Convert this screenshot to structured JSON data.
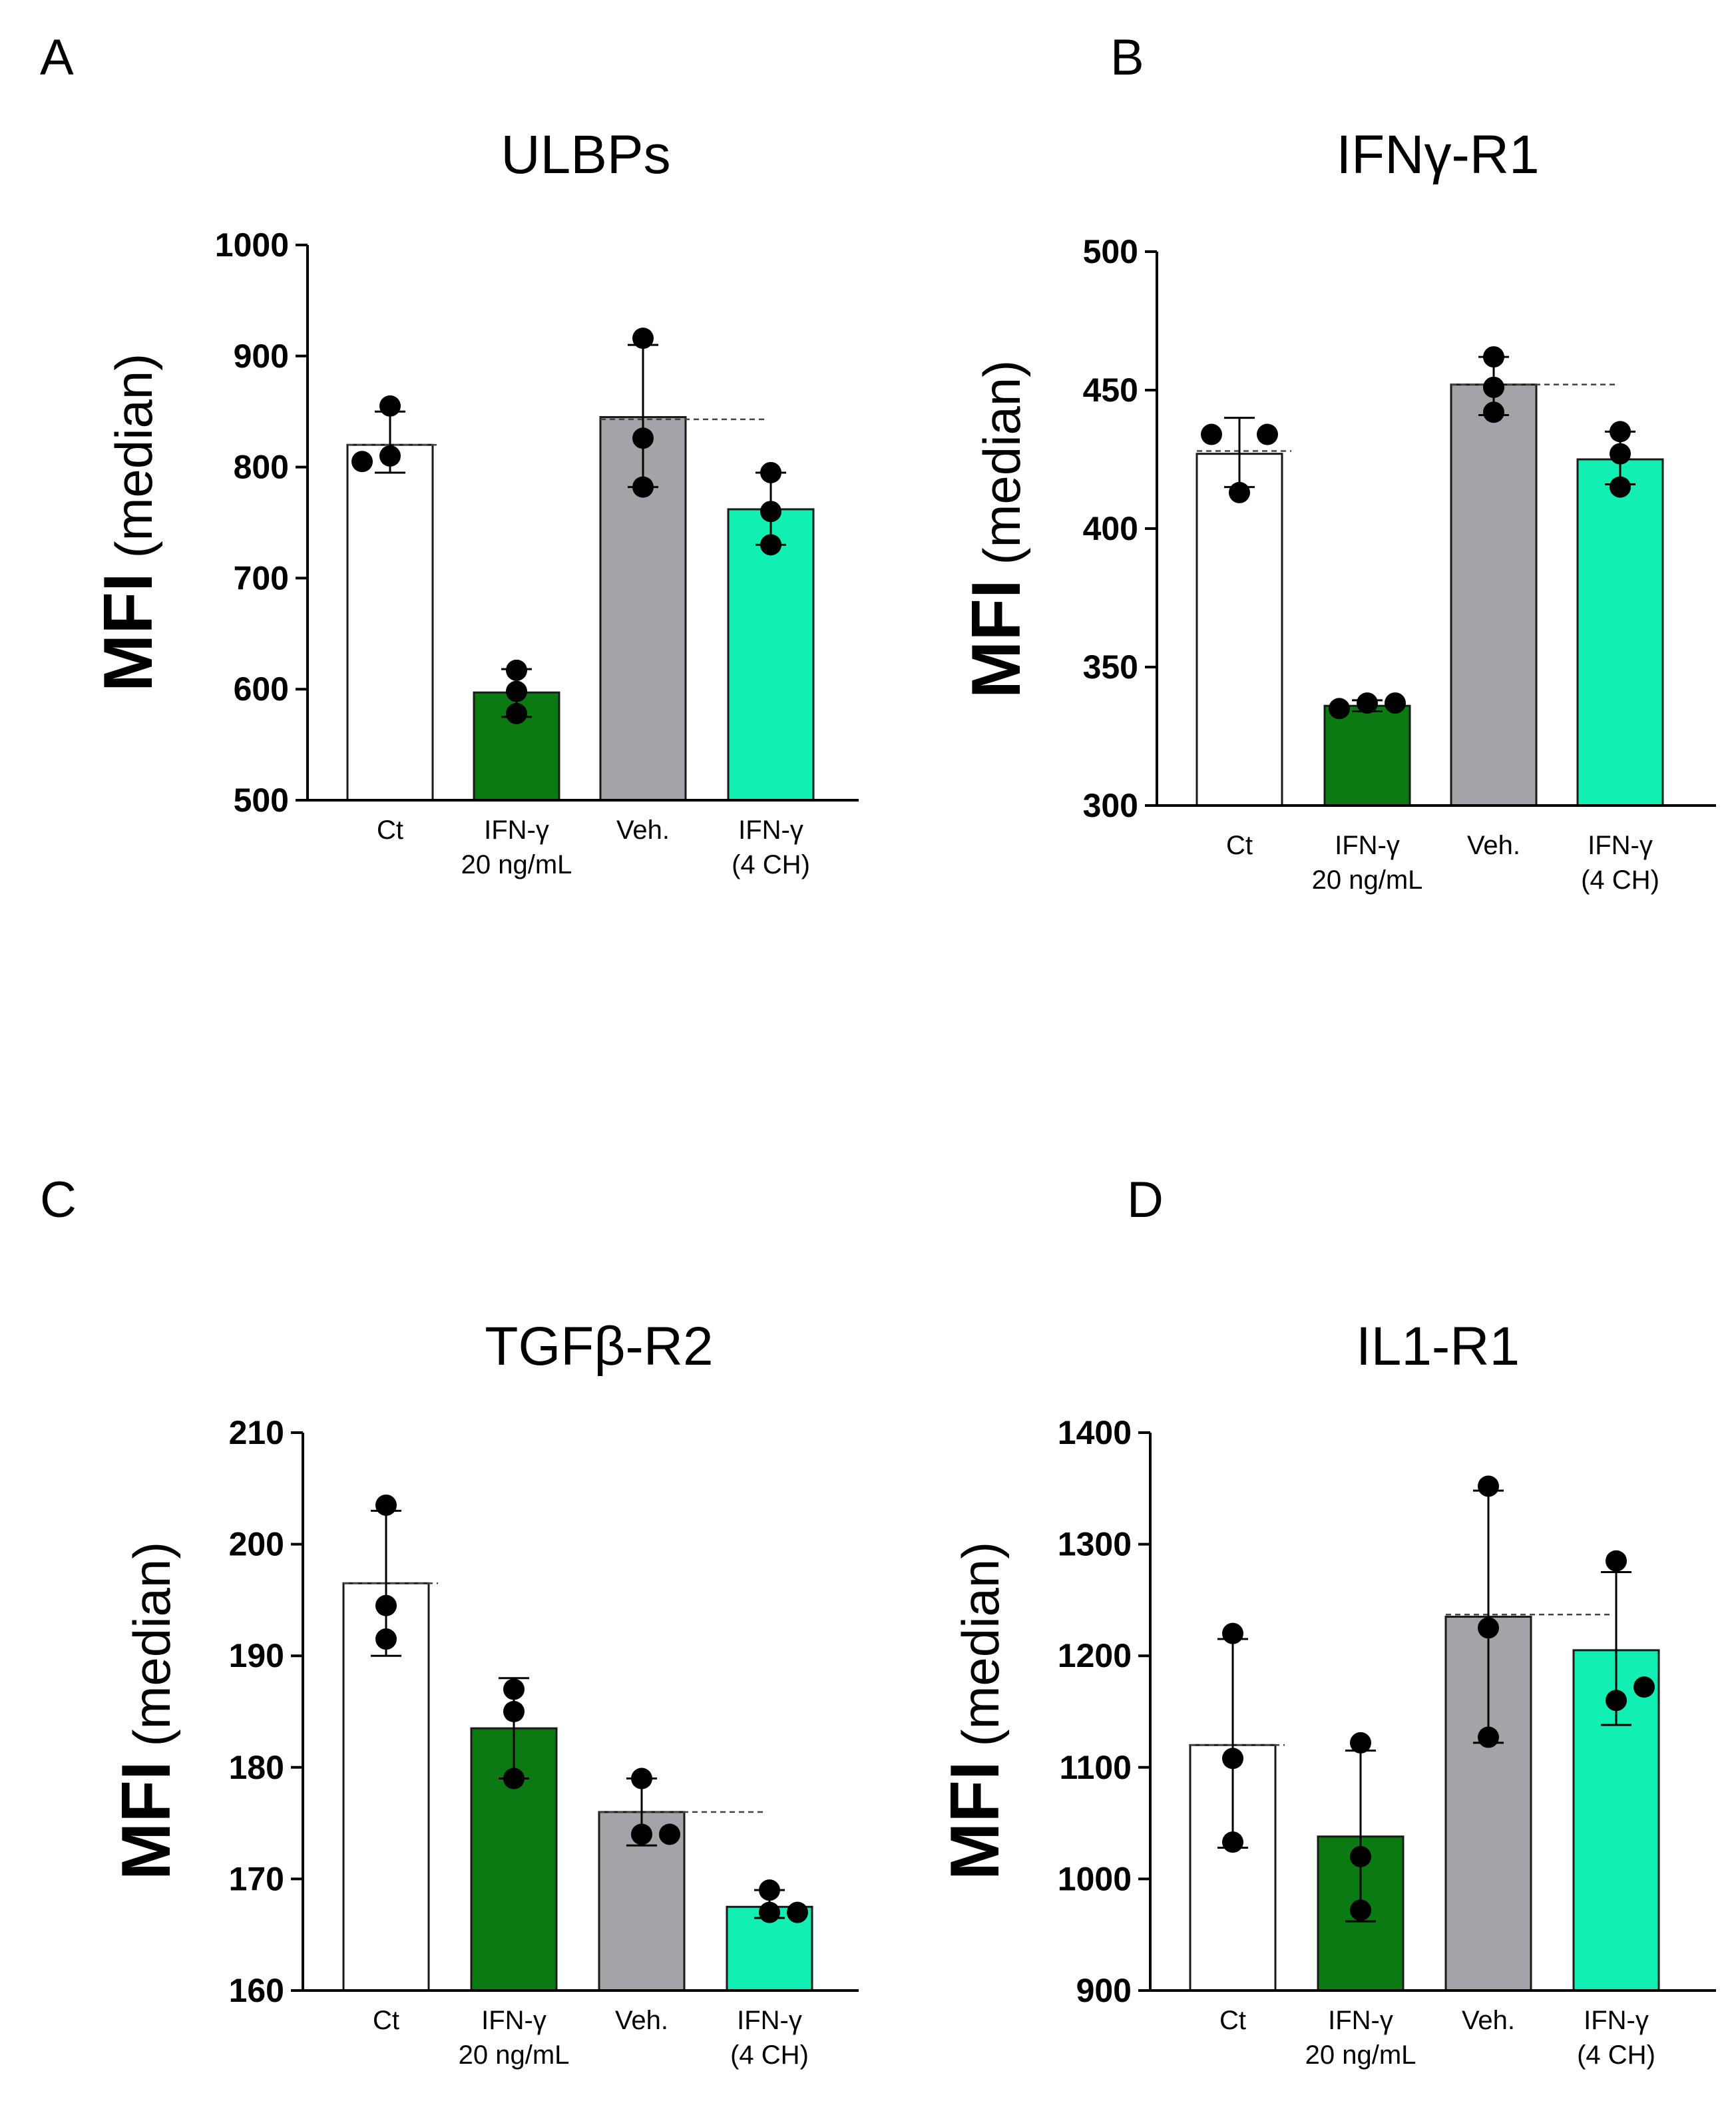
{
  "figure": {
    "panels": [
      "A",
      "B",
      "C",
      "D"
    ]
  },
  "chart_data": [
    {
      "panel": "A",
      "type": "bar",
      "title": "ULBPs",
      "ylabel_bold": "MFI",
      "ylabel_rest": "(median)",
      "ylim": [
        500,
        1000
      ],
      "yticks": [
        500,
        600,
        700,
        800,
        900,
        1000
      ],
      "categories": [
        [
          "Ct"
        ],
        [
          "IFN-γ",
          "20 ng/mL"
        ],
        [
          "Veh."
        ],
        [
          "IFN-γ",
          "(4 CH)"
        ]
      ],
      "values": [
        820,
        597,
        845,
        762
      ],
      "errors": [
        [
          795,
          850
        ],
        [
          575,
          618
        ],
        [
          782,
          910
        ],
        [
          730,
          795
        ]
      ],
      "points": [
        [
          805,
          810,
          855
        ],
        [
          578,
          598,
          617
        ],
        [
          782,
          826,
          916
        ],
        [
          730,
          760,
          795
        ]
      ],
      "reference_line": 820,
      "reference_line_2": 843,
      "colors": [
        "#ffffff",
        "#0b7a12",
        "#a4a3a8",
        "#12efb2"
      ]
    },
    {
      "panel": "B",
      "type": "bar",
      "title": "IFNγ-R1",
      "ylabel_bold": "MFI",
      "ylabel_rest": "(median)",
      "ylim": [
        300,
        500
      ],
      "yticks": [
        300,
        350,
        400,
        450,
        500
      ],
      "categories": [
        [
          "Ct"
        ],
        [
          "IFN-γ",
          "20 ng/mL"
        ],
        [
          "Veh."
        ],
        [
          "IFN-γ",
          "(4 CH)"
        ]
      ],
      "values": [
        427,
        336,
        452,
        425
      ],
      "errors": [
        [
          415,
          440
        ],
        [
          334,
          338
        ],
        [
          441,
          462
        ],
        [
          416,
          435
        ]
      ],
      "points": [
        [
          434,
          413,
          434
        ],
        [
          335,
          337,
          337
        ],
        [
          462,
          451,
          442
        ],
        [
          435,
          415,
          427
        ]
      ],
      "reference_line": 428,
      "reference_line_2": 452,
      "colors": [
        "#ffffff",
        "#0b7a12",
        "#a4a3a8",
        "#12efb2"
      ]
    },
    {
      "panel": "C",
      "type": "bar",
      "title": "TGFβ-R2",
      "ylabel_bold": "MFI",
      "ylabel_rest": "(median)",
      "ylim": [
        160,
        210
      ],
      "yticks": [
        160,
        170,
        180,
        190,
        200,
        210
      ],
      "categories": [
        [
          "Ct"
        ],
        [
          "IFN-γ",
          "20 ng/mL"
        ],
        [
          "Veh."
        ],
        [
          "IFN-γ",
          "(4 CH)"
        ]
      ],
      "values": [
        196.5,
        183.5,
        176,
        167.5
      ],
      "errors": [
        [
          190,
          203
        ],
        [
          179,
          188
        ],
        [
          173,
          179
        ],
        [
          166.5,
          169
        ]
      ],
      "points": [
        [
          203.5,
          194.5,
          191.5
        ],
        [
          187,
          185,
          179
        ],
        [
          179,
          174,
          174
        ],
        [
          169,
          167,
          167
        ]
      ],
      "reference_line": 196.5,
      "reference_line_2": 176,
      "colors": [
        "#ffffff",
        "#0b7a12",
        "#a4a3a8",
        "#12efb2"
      ]
    },
    {
      "panel": "D",
      "type": "bar",
      "title": "IL1-R1",
      "ylabel_bold": "MFI",
      "ylabel_rest": "(median)",
      "ylim": [
        900,
        1400
      ],
      "yticks": [
        900,
        1000,
        1100,
        1200,
        1300,
        1400
      ],
      "categories": [
        [
          "Ct"
        ],
        [
          "IFN-γ",
          "20 ng/mL"
        ],
        [
          "Veh."
        ],
        [
          "IFN-γ",
          "(4 CH)"
        ]
      ],
      "values": [
        1120,
        1038,
        1235,
        1205
      ],
      "errors": [
        [
          1028,
          1215
        ],
        [
          962,
          1115
        ],
        [
          1122,
          1348
        ],
        [
          1138,
          1275
        ]
      ],
      "points": [
        [
          1220,
          1108,
          1033
        ],
        [
          1122,
          1020,
          972
        ],
        [
          1352,
          1225,
          1127
        ],
        [
          1285,
          1160,
          1172
        ]
      ],
      "reference_line": 1120,
      "reference_line_2": 1237,
      "colors": [
        "#ffffff",
        "#0b7a12",
        "#a4a3a8",
        "#12efb2"
      ]
    }
  ]
}
